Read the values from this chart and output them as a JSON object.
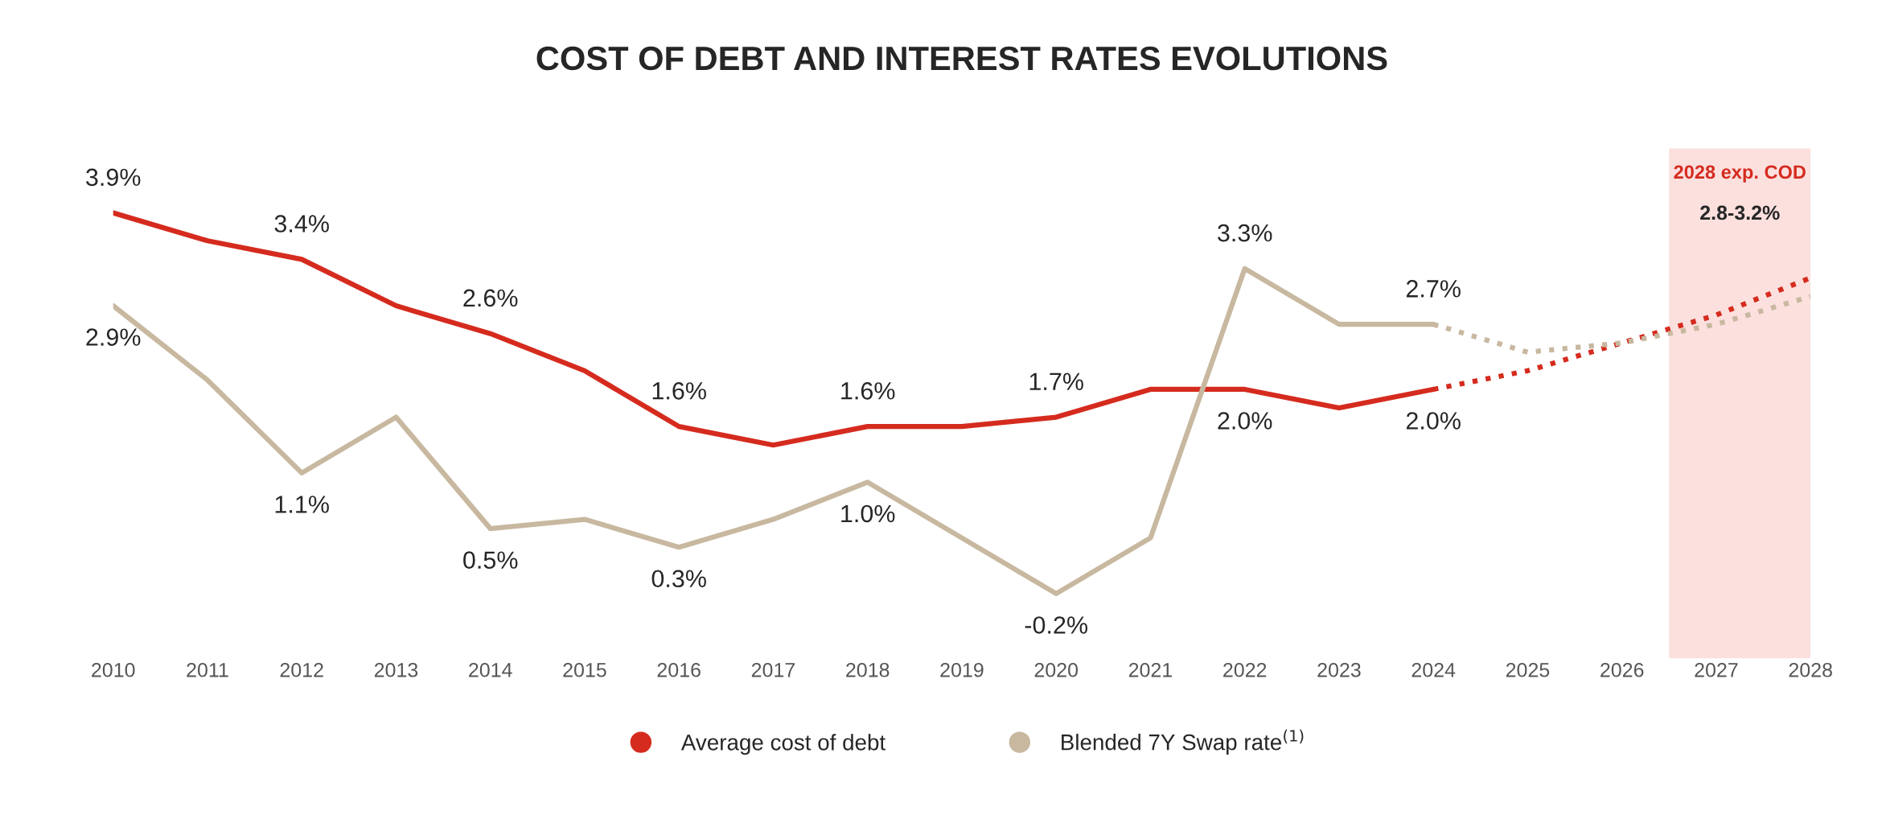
{
  "chart_data": {
    "type": "line",
    "title": "COST OF DEBT AND INTEREST RATES EVOLUTIONS",
    "xlim": [
      2010,
      2028
    ],
    "xticks": [
      2010,
      2011,
      2012,
      2013,
      2014,
      2015,
      2016,
      2017,
      2018,
      2019,
      2020,
      2021,
      2022,
      2023,
      2024,
      2025,
      2026,
      2027,
      2028
    ],
    "tick_labels": "x",
    "grid": false,
    "legend": "bottom",
    "marker": "none",
    "series": [
      {
        "name": "Average cost of debt",
        "color": "#d52b1e",
        "line_style": "solid",
        "x": [
          2010,
          2011,
          2012,
          2013,
          2014,
          2015,
          2016,
          2017,
          2018,
          2019,
          2020,
          2021,
          2022,
          2023,
          2024
        ],
        "values": [
          3.9,
          3.6,
          3.4,
          2.9,
          2.6,
          2.2,
          1.6,
          1.4,
          1.6,
          1.6,
          1.7,
          2.0,
          2.0,
          1.8,
          2.0
        ],
        "value_labels": [
          "3.9%",
          null,
          "3.4%",
          null,
          "2.6%",
          null,
          "1.6%",
          null,
          "1.6%",
          null,
          "1.7%",
          null,
          "2.0%",
          null,
          "2.0%"
        ]
      },
      {
        "name": "Blended 7Y Swap rate$^{(1)}$",
        "color": "#c8b8a0",
        "line_style": "solid",
        "x": [
          2010,
          2011,
          2012,
          2013,
          2014,
          2015,
          2016,
          2017,
          2018,
          2019,
          2020,
          2021,
          2022,
          2023,
          2024
        ],
        "values": [
          2.9,
          2.1,
          1.1,
          1.7,
          0.5,
          0.6,
          0.3,
          0.6,
          1.0,
          0.4,
          -0.2,
          0.4,
          3.3,
          2.7,
          2.7
        ],
        "value_labels": [
          "2.9%",
          null,
          "1.1%",
          null,
          "0.5%",
          null,
          "0.3%",
          null,
          "1.0%",
          null,
          "-0.2%",
          null,
          "3.3%",
          null,
          "2.7%"
        ]
      },
      {
        "color": "#d52b1e",
        "line_style": "dotted",
        "x": [
          2024,
          2025,
          2026,
          2027,
          2028
        ],
        "values": [
          2.0,
          2.2,
          2.5,
          2.8,
          3.2
        ]
      },
      {
        "color": "#c8b8a0",
        "line_style": "dotted",
        "x": [
          2024,
          2025,
          2026,
          2027,
          2028
        ],
        "values": [
          2.7,
          2.4,
          2.5,
          2.7,
          3.0
        ]
      }
    ],
    "bands": [
      {
        "axis": "x",
        "from": 2026.5,
        "to": 2028,
        "label": "2028 exp. COD",
        "color": "#fbe0de"
      }
    ],
    "annotations": [
      "2.8-3.2%"
    ]
  }
}
